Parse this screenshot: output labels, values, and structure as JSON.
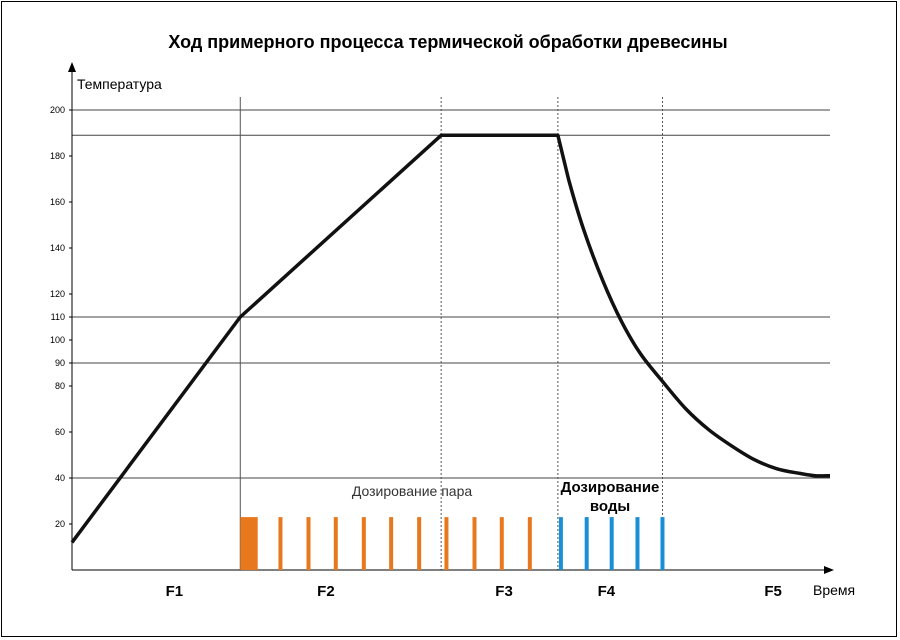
{
  "chart_data": {
    "type": "line",
    "title": "Ход примерного процесса термической обработки древесины",
    "ylabel": "Температура",
    "xlabel": "Время",
    "ylim": [
      0,
      200
    ],
    "xlim": [
      0,
      100
    ],
    "y_ticks": [
      20,
      40,
      60,
      80,
      90,
      100,
      110,
      120,
      140,
      160,
      180,
      200
    ],
    "y_gridlines": [
      40,
      90,
      110,
      189,
      200
    ],
    "phase_boundaries": [
      22.2,
      48.7,
      64.1,
      77.9
    ],
    "phases": [
      {
        "label": "F1",
        "x": 13.5
      },
      {
        "label": "F2",
        "x": 33.5
      },
      {
        "label": "F3",
        "x": 57
      },
      {
        "label": "F4",
        "x": 70.5
      },
      {
        "label": "F5",
        "x": 92.5
      }
    ],
    "series": [
      {
        "color": "#111111",
        "x": [
          0,
          22.2,
          48.7,
          64.1,
          65.5,
          67.5,
          70,
          72.5,
          75,
          77.9,
          81,
          84,
          87,
          90,
          93,
          96,
          98,
          100
        ],
        "y": [
          12,
          110,
          189,
          189,
          170,
          148,
          126,
          108,
          94,
          82,
          70,
          61,
          54,
          48,
          44,
          42,
          41,
          41
        ]
      }
    ],
    "dosing": {
      "steam_label": "Дозирование пара",
      "water_label": "Дозирование воды",
      "steam_color": "#e8781e",
      "water_color": "#1a8fd6",
      "steam_block": [
        22.2,
        24.5
      ],
      "steam_bars": [
        27.5,
        31.2,
        34.8,
        38.5,
        42.1,
        45.8,
        49.4,
        53.1,
        56.7,
        60.4
      ],
      "water_bars": [
        64.5,
        67.9,
        71.2,
        74.6,
        77.9
      ],
      "bar_level": 23
    }
  }
}
